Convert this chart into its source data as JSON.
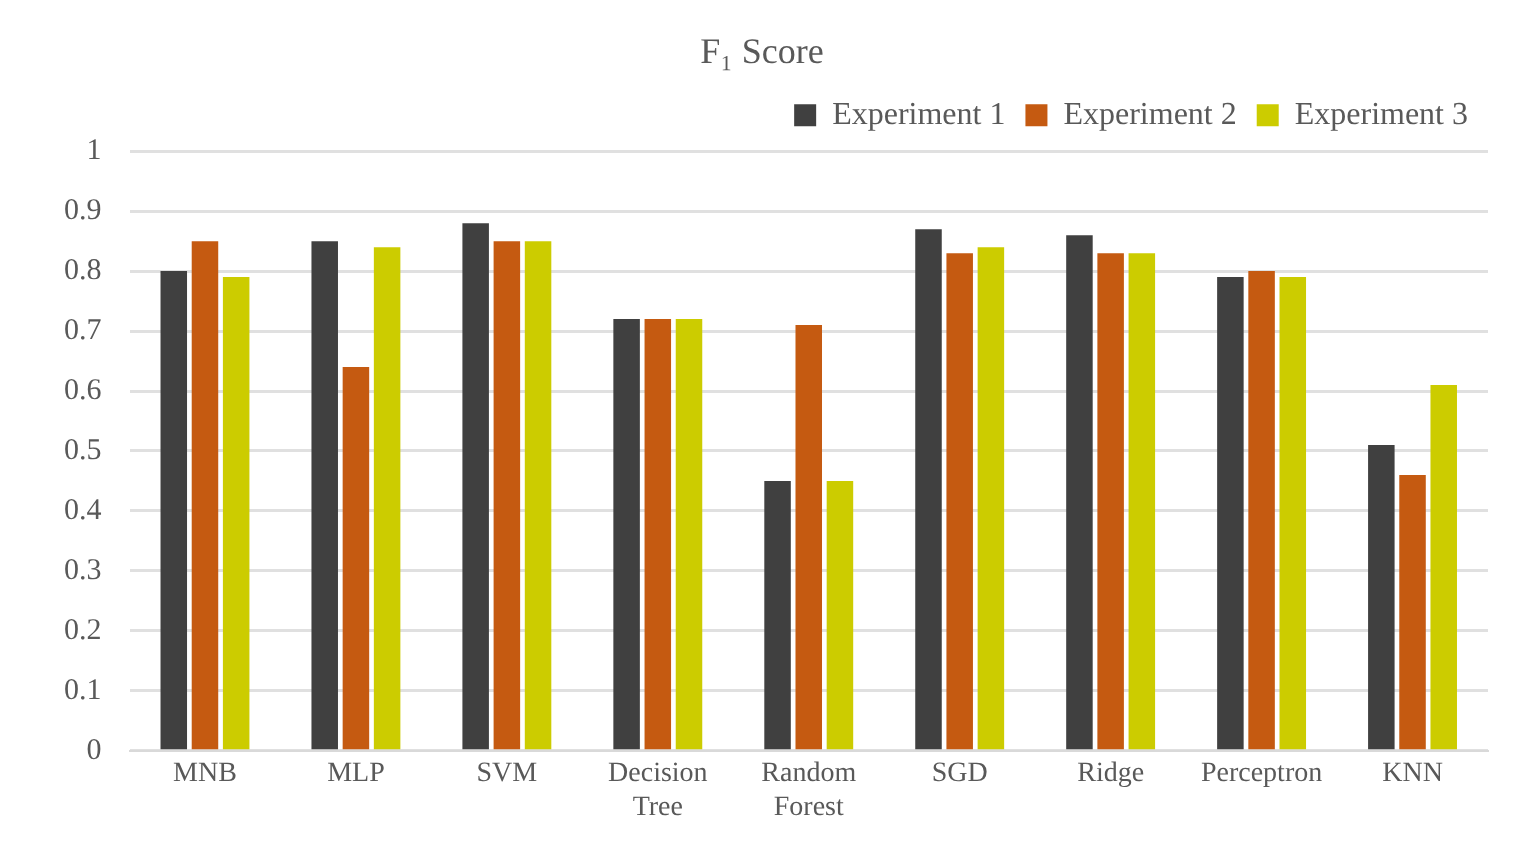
{
  "chart_data": {
    "type": "bar",
    "title": "F₁ Score",
    "categories": [
      "MNB",
      "MLP",
      "SVM",
      "Decision Tree",
      "Random Forest",
      "SGD",
      "Ridge",
      "Perceptron",
      "KNN"
    ],
    "series": [
      {
        "name": "Experiment 1",
        "color": "#404040",
        "values": [
          0.8,
          0.85,
          0.88,
          0.72,
          0.45,
          0.87,
          0.86,
          0.79,
          0.51
        ]
      },
      {
        "name": "Experiment 2",
        "color": "#c55a11",
        "values": [
          0.85,
          0.64,
          0.85,
          0.72,
          0.71,
          0.83,
          0.83,
          0.8,
          0.46
        ]
      },
      {
        "name": "Experiment 3",
        "color": "#cccc00",
        "values": [
          0.79,
          0.84,
          0.85,
          0.72,
          0.45,
          0.84,
          0.83,
          0.79,
          0.61
        ]
      }
    ],
    "ylim": [
      0,
      1
    ],
    "yticks": [
      0,
      0.1,
      0.2,
      0.3,
      0.4,
      0.5,
      0.6,
      0.7,
      0.8,
      0.9,
      1
    ],
    "grid": "y",
    "legend": "top right"
  }
}
